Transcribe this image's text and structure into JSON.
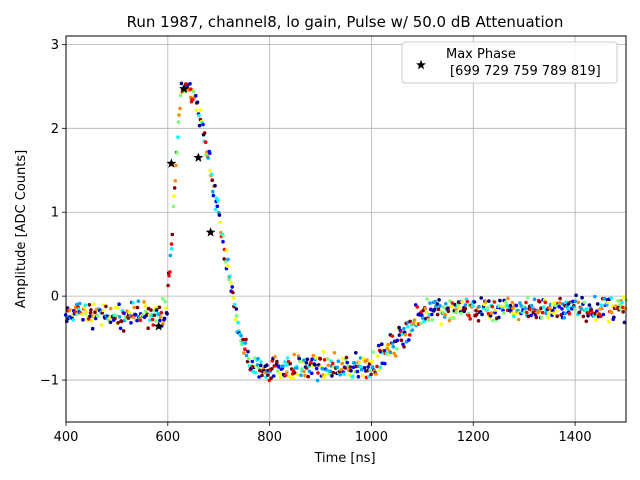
{
  "chart_data": {
    "type": "scatter",
    "title": "Run 1987, channel8, lo gain, Pulse w/ 50.0 dB Attenuation",
    "xlabel": "Time [ns]",
    "ylabel": "Amplitude [ADC Counts]",
    "xlim": [
      400,
      1500
    ],
    "ylim": [
      -1.5,
      3.1
    ],
    "xticks": [
      400,
      600,
      800,
      1000,
      1200,
      1400
    ],
    "yticks": [
      -1,
      0,
      1,
      2,
      3
    ],
    "grid": true,
    "legend_position": "top-right",
    "legend": [
      {
        "marker": "star",
        "label": "Max Phase",
        "sublabel": "[699 729 759 789 819]"
      }
    ],
    "phase_colors": [
      "#000080",
      "#0000ff",
      "#00a0ff",
      "#00ffff",
      "#7dff7a",
      "#ffff00",
      "#ff8c00",
      "#ff0000",
      "#800000"
    ],
    "pulse_model": {
      "baseline": -0.22,
      "rise_start": 592,
      "peak_time": 632,
      "peak_amplitude": 2.5,
      "undershoot": -0.85,
      "undershoot_start": 775,
      "undershoot_end": 980,
      "recovery_end": 1130,
      "late_baseline": -0.15,
      "noise": 0.12
    },
    "series": [
      {
        "name": "Max Phase",
        "marker": "star",
        "x": [
          582,
          607,
          632,
          660,
          684
        ],
        "y": [
          -0.36,
          1.58,
          2.47,
          1.65,
          0.76
        ]
      }
    ]
  }
}
